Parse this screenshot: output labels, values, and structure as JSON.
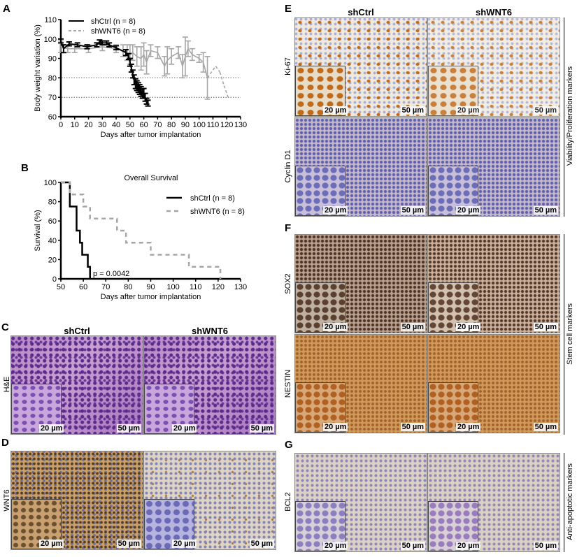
{
  "panels": {
    "A": "A",
    "B": "B",
    "C": "C",
    "D": "D",
    "E": "E",
    "F": "F",
    "G": "G"
  },
  "columns": {
    "ctrl": "shCtrl",
    "wnt6": "shWNT6"
  },
  "scale_bars": {
    "inset": "20 µm",
    "main": "50 µm"
  },
  "rows": {
    "he": "H&E",
    "wnt6": "WNT6",
    "ki67": "Ki-67",
    "cyclin": "Cyclin D1",
    "sox2": "SOX2",
    "nestin": "NESTIN",
    "bcl2": "BCL2"
  },
  "side_labels": {
    "E": "Viability/Proliferation markers",
    "F": "Stem cell markers",
    "G": "Anti-apoptotic markers"
  },
  "chart_data": [
    {
      "type": "line",
      "panel": "A",
      "xlabel": "Days after tumor implantation",
      "ylabel": "Body weight variation (%)",
      "xlim": [
        0,
        130
      ],
      "ylim": [
        60,
        110
      ],
      "xticks": [
        0,
        10,
        20,
        30,
        40,
        50,
        60,
        70,
        80,
        90,
        100,
        110,
        120,
        130
      ],
      "yticks": [
        60,
        70,
        80,
        90,
        100,
        110
      ],
      "reference_lines": [
        80,
        70
      ],
      "legend": "top-left",
      "series": [
        {
          "name": "shCtrl (n = 8)",
          "color": "#000000",
          "style": "solid",
          "x": [
            0,
            2,
            6,
            12,
            19,
            26,
            28,
            30,
            33,
            35,
            40,
            47,
            49,
            50,
            51,
            52,
            53,
            54,
            55,
            56,
            57,
            58,
            59,
            60,
            61,
            62,
            63
          ],
          "y": [
            99,
            95,
            97.5,
            97,
            96,
            97,
            98.5,
            98,
            98,
            97,
            95.5,
            93,
            91,
            88,
            85,
            82,
            79,
            77,
            76,
            75,
            74,
            73,
            72,
            72,
            70,
            68,
            67
          ],
          "sd": [
            1,
            2,
            1,
            1,
            1,
            1,
            1,
            1,
            1,
            1,
            1,
            1.5,
            1.5,
            2,
            2,
            2,
            2.5,
            2.5,
            2.5,
            2.5,
            2.5,
            2.5,
            2.5,
            2.5,
            2,
            1.5,
            1.5
          ]
        },
        {
          "name": "shWNT6 (n = 8)",
          "color": "#a6a6a6",
          "style": "dashed",
          "x": [
            0,
            5,
            10,
            20,
            30,
            40,
            45,
            48,
            50,
            52,
            55,
            58,
            60,
            62,
            65,
            70,
            75,
            77,
            80,
            85,
            88,
            90,
            92,
            95,
            100,
            103,
            106,
            108,
            112,
            115,
            118,
            121
          ],
          "y": [
            96,
            95,
            95,
            95,
            96,
            95,
            94,
            93,
            92,
            93,
            91,
            90,
            92,
            88,
            94,
            93,
            86,
            89,
            91,
            93,
            86,
            91,
            95,
            92,
            90,
            88,
            80,
            82,
            86,
            83,
            76,
            70
          ],
          "sd": [
            3,
            2,
            2,
            2,
            2,
            2,
            3,
            4,
            5,
            4,
            5,
            6,
            6,
            6,
            3,
            3,
            5,
            7,
            4,
            3,
            6,
            10,
            4,
            3,
            2,
            5,
            11,
            0,
            0,
            0,
            0,
            0
          ]
        }
      ]
    },
    {
      "type": "line",
      "panel": "B",
      "title": "Overall Survival",
      "xlabel": "Days after tumor implantation",
      "ylabel": "Survival (%)",
      "xlim": [
        50,
        130
      ],
      "ylim": [
        0,
        100
      ],
      "xticks": [
        50,
        60,
        70,
        80,
        90,
        100,
        110,
        120,
        130
      ],
      "yticks": [
        0,
        20,
        40,
        60,
        80,
        100
      ],
      "legend": "right",
      "annotation": "p = 0.0042",
      "step": true,
      "series": [
        {
          "name": "shCtrl (n = 8)",
          "color": "#000000",
          "style": "solid",
          "x": [
            50,
            54,
            57,
            58.5,
            59.5,
            62,
            63
          ],
          "y": [
            100,
            75,
            50,
            37.5,
            25,
            12.5,
            0
          ]
        },
        {
          "name": "shWNT6 (n = 8)",
          "color": "#a6a6a6",
          "style": "dashed",
          "x": [
            50,
            54,
            60,
            63,
            75,
            79,
            90,
            107,
            121
          ],
          "y": [
            100,
            87.5,
            75,
            62.5,
            50,
            37.5,
            25,
            12.5,
            0
          ]
        }
      ]
    }
  ]
}
